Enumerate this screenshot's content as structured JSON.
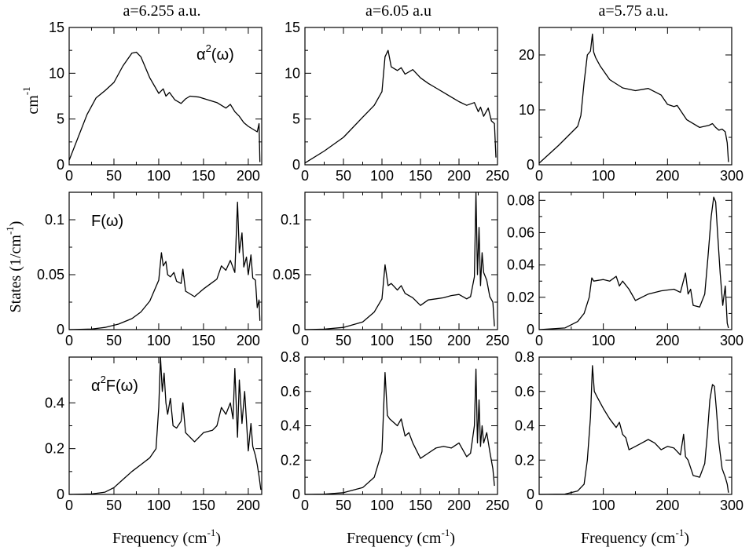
{
  "figure": {
    "columns": [
      {
        "title": "a=6.255 a.u."
      },
      {
        "title": "a=6.05 a.u"
      },
      {
        "title": "a=5.75 a.u."
      }
    ],
    "y_label_top": {
      "main": "cm",
      "sup": "-1"
    },
    "y_label_middle": {
      "main": "States (1/cm",
      "sup": "-1",
      "tail": ")"
    },
    "x_label": {
      "main": "Frequency (cm",
      "sup": "-1",
      "tail": ")"
    }
  },
  "chart_data": [
    {
      "type": "line",
      "row": 0,
      "col": 0,
      "annotation": {
        "prefix": "α",
        "sup": "2",
        "suffix": "(ω)"
      },
      "xlim": [
        0,
        215
      ],
      "ylim": [
        0,
        15
      ],
      "xticks": [
        0,
        50,
        100,
        150,
        200
      ],
      "yticks": [
        0,
        5,
        10,
        15
      ],
      "x": [
        0,
        10,
        20,
        30,
        40,
        50,
        60,
        70,
        75,
        80,
        90,
        100,
        105,
        108,
        112,
        118,
        125,
        130,
        135,
        145,
        155,
        165,
        175,
        180,
        185,
        190,
        195,
        200,
        205,
        210,
        212,
        213
      ],
      "y": [
        0.5,
        3,
        5.5,
        7.3,
        8.1,
        9,
        10.8,
        12.2,
        12.3,
        11.8,
        9.5,
        7.8,
        8.3,
        7.5,
        7.9,
        7.1,
        6.7,
        7.2,
        7.5,
        7.4,
        7.1,
        6.8,
        6.2,
        6.6,
        5.8,
        5.3,
        4.6,
        4.2,
        3.9,
        3.6,
        4.5,
        0.3
      ]
    },
    {
      "type": "line",
      "row": 0,
      "col": 1,
      "annotation": null,
      "xlim": [
        0,
        250
      ],
      "ylim": [
        0,
        15
      ],
      "xticks": [
        0,
        50,
        100,
        150,
        200,
        250
      ],
      "yticks": [
        0,
        5,
        10,
        15
      ],
      "x": [
        0,
        25,
        50,
        75,
        90,
        100,
        104,
        108,
        112,
        120,
        125,
        130,
        140,
        150,
        160,
        170,
        180,
        190,
        200,
        210,
        220,
        225,
        228,
        232,
        238,
        242,
        246,
        248
      ],
      "y": [
        0.2,
        1.5,
        3,
        5.2,
        6.5,
        8,
        11.8,
        12.5,
        10.7,
        10.3,
        10.6,
        9.9,
        10.4,
        9.5,
        8.9,
        8.4,
        7.9,
        7.4,
        6.9,
        6.5,
        6.8,
        5.8,
        6.3,
        5.3,
        6.2,
        4.8,
        4.5,
        0.8
      ]
    },
    {
      "type": "line",
      "row": 0,
      "col": 2,
      "annotation": null,
      "xlim": [
        0,
        300
      ],
      "ylim": [
        0,
        25
      ],
      "xticks": [
        0,
        100,
        200,
        300
      ],
      "yticks": [
        0,
        10,
        20
      ],
      "x": [
        0,
        30,
        60,
        65,
        70,
        75,
        80,
        83,
        85,
        88,
        95,
        110,
        130,
        150,
        170,
        190,
        200,
        210,
        215,
        230,
        250,
        265,
        270,
        275,
        280,
        285,
        290,
        293,
        295
      ],
      "y": [
        0.3,
        3.5,
        7,
        9,
        15,
        20,
        20.7,
        23.8,
        20.5,
        19.5,
        18,
        15.5,
        14,
        13.5,
        13.9,
        12.7,
        11,
        10.6,
        10.8,
        8.2,
        6.8,
        7.2,
        7.5,
        6.8,
        6.3,
        6.5,
        6,
        4,
        0.5
      ]
    },
    {
      "type": "line",
      "row": 1,
      "col": 0,
      "annotation": {
        "prefix": "F",
        "sup": "",
        "suffix": "(ω)"
      },
      "xlim": [
        0,
        215
      ],
      "ylim": [
        0,
        0.125
      ],
      "xticks": [
        0,
        50,
        100,
        150,
        200
      ],
      "yticks": [
        0,
        0.05,
        0.1
      ],
      "x": [
        0,
        25,
        40,
        55,
        70,
        80,
        90,
        100,
        103,
        105,
        108,
        110,
        113,
        117,
        120,
        125,
        127,
        130,
        140,
        150,
        160,
        165,
        170,
        175,
        180,
        185,
        188,
        190,
        193,
        195,
        198,
        200,
        203,
        205,
        208,
        210,
        212,
        213
      ],
      "y": [
        0,
        0.0005,
        0.002,
        0.005,
        0.01,
        0.016,
        0.026,
        0.045,
        0.07,
        0.058,
        0.062,
        0.05,
        0.048,
        0.052,
        0.044,
        0.042,
        0.055,
        0.035,
        0.03,
        0.037,
        0.043,
        0.046,
        0.058,
        0.054,
        0.063,
        0.052,
        0.116,
        0.07,
        0.088,
        0.057,
        0.066,
        0.05,
        0.068,
        0.047,
        0.045,
        0.02,
        0.027,
        0.008
      ]
    },
    {
      "type": "line",
      "row": 1,
      "col": 1,
      "annotation": null,
      "xlim": [
        0,
        250
      ],
      "ylim": [
        0,
        0.125
      ],
      "xticks": [
        0,
        50,
        100,
        150,
        200,
        250
      ],
      "yticks": [
        0,
        0.05,
        0.1
      ],
      "x": [
        0,
        25,
        50,
        75,
        90,
        100,
        104,
        108,
        112,
        120,
        125,
        130,
        140,
        150,
        160,
        170,
        180,
        190,
        200,
        210,
        215,
        220,
        222,
        224,
        226,
        228,
        230,
        232,
        236,
        240,
        244,
        246
      ],
      "y": [
        0,
        0.0004,
        0.002,
        0.007,
        0.016,
        0.028,
        0.059,
        0.04,
        0.042,
        0.036,
        0.04,
        0.033,
        0.029,
        0.022,
        0.027,
        0.028,
        0.029,
        0.031,
        0.032,
        0.028,
        0.03,
        0.048,
        0.125,
        0.05,
        0.093,
        0.04,
        0.07,
        0.052,
        0.045,
        0.03,
        0.025,
        0.003
      ]
    },
    {
      "type": "line",
      "row": 1,
      "col": 2,
      "annotation": null,
      "xlim": [
        0,
        300
      ],
      "ylim": [
        0,
        0.085
      ],
      "xticks": [
        0,
        100,
        200,
        300
      ],
      "yticks": [
        0,
        0.02,
        0.04,
        0.06,
        0.08
      ],
      "x": [
        0,
        40,
        60,
        70,
        78,
        82,
        85,
        100,
        110,
        120,
        125,
        130,
        140,
        150,
        170,
        190,
        210,
        220,
        228,
        232,
        236,
        240,
        250,
        258,
        263,
        268,
        272,
        275,
        278,
        282,
        286,
        290,
        293,
        295
      ],
      "y": [
        0,
        0.001,
        0.005,
        0.01,
        0.02,
        0.032,
        0.03,
        0.031,
        0.03,
        0.033,
        0.027,
        0.03,
        0.025,
        0.018,
        0.022,
        0.024,
        0.025,
        0.023,
        0.035,
        0.022,
        0.025,
        0.015,
        0.014,
        0.022,
        0.045,
        0.07,
        0.082,
        0.079,
        0.06,
        0.035,
        0.015,
        0.027,
        0.004,
        0.001
      ]
    },
    {
      "type": "line",
      "row": 2,
      "col": 0,
      "annotation": {
        "prefix": "α",
        "sup": "2",
        "suffix": "F(ω)"
      },
      "xlim": [
        0,
        215
      ],
      "ylim": [
        0,
        0.6
      ],
      "xticks": [
        0,
        50,
        100,
        150,
        200
      ],
      "yticks": [
        0,
        0.2,
        0.4
      ],
      "x": [
        0,
        25,
        40,
        50,
        60,
        70,
        80,
        90,
        97,
        100,
        102,
        104,
        106,
        108,
        110,
        113,
        116,
        120,
        125,
        127,
        130,
        140,
        150,
        160,
        165,
        170,
        175,
        180,
        183,
        185,
        188,
        190,
        193,
        196,
        200,
        203,
        205,
        208,
        210,
        212,
        214
      ],
      "y": [
        0,
        0.002,
        0.01,
        0.03,
        0.065,
        0.1,
        0.13,
        0.16,
        0.2,
        0.38,
        0.6,
        0.45,
        0.53,
        0.4,
        0.35,
        0.42,
        0.3,
        0.29,
        0.32,
        0.4,
        0.27,
        0.23,
        0.27,
        0.28,
        0.3,
        0.38,
        0.35,
        0.4,
        0.33,
        0.55,
        0.25,
        0.5,
        0.31,
        0.45,
        0.19,
        0.31,
        0.21,
        0.17,
        0.13,
        0.08,
        0.02
      ]
    },
    {
      "type": "line",
      "row": 2,
      "col": 1,
      "annotation": null,
      "xlim": [
        0,
        250
      ],
      "ylim": [
        0,
        0.8
      ],
      "xticks": [
        0,
        50,
        100,
        150,
        200,
        250
      ],
      "yticks": [
        0,
        0.2,
        0.4,
        0.6,
        0.8
      ],
      "x": [
        0,
        25,
        50,
        75,
        90,
        100,
        104,
        107,
        110,
        115,
        120,
        125,
        130,
        135,
        140,
        150,
        160,
        170,
        180,
        190,
        200,
        210,
        215,
        220,
        222,
        224,
        226,
        228,
        230,
        232,
        236,
        240,
        244,
        246
      ],
      "y": [
        0,
        0.002,
        0.01,
        0.04,
        0.1,
        0.25,
        0.71,
        0.46,
        0.44,
        0.42,
        0.4,
        0.44,
        0.34,
        0.36,
        0.3,
        0.21,
        0.24,
        0.27,
        0.28,
        0.27,
        0.3,
        0.22,
        0.24,
        0.4,
        0.73,
        0.3,
        0.55,
        0.28,
        0.4,
        0.3,
        0.36,
        0.25,
        0.15,
        0.05
      ]
    },
    {
      "type": "line",
      "row": 2,
      "col": 2,
      "annotation": null,
      "xlim": [
        0,
        300
      ],
      "ylim": [
        0,
        0.8
      ],
      "xticks": [
        0,
        100,
        200,
        300
      ],
      "yticks": [
        0,
        0.2,
        0.4,
        0.6,
        0.8
      ],
      "x": [
        0,
        40,
        60,
        70,
        75,
        80,
        83,
        86,
        90,
        100,
        110,
        120,
        125,
        130,
        135,
        140,
        150,
        160,
        170,
        180,
        190,
        200,
        210,
        220,
        225,
        228,
        232,
        240,
        250,
        258,
        262,
        266,
        270,
        273,
        276,
        280,
        285,
        290,
        293,
        295
      ],
      "y": [
        0,
        0.002,
        0.02,
        0.06,
        0.2,
        0.45,
        0.75,
        0.6,
        0.57,
        0.5,
        0.44,
        0.39,
        0.42,
        0.35,
        0.33,
        0.26,
        0.28,
        0.3,
        0.32,
        0.3,
        0.26,
        0.28,
        0.27,
        0.23,
        0.35,
        0.22,
        0.2,
        0.11,
        0.1,
        0.18,
        0.35,
        0.55,
        0.64,
        0.63,
        0.5,
        0.3,
        0.15,
        0.1,
        0.06,
        0.01
      ]
    }
  ]
}
